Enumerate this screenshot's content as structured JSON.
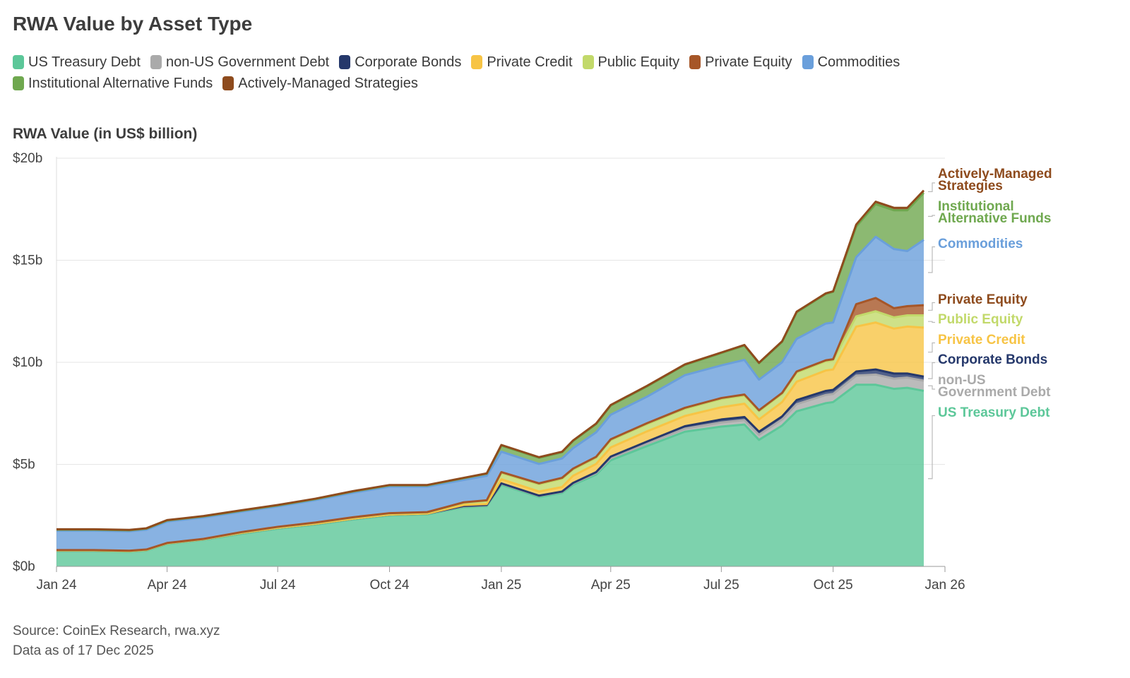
{
  "chart_data": {
    "type": "area",
    "stacked": true,
    "title": "RWA Value by Asset Type",
    "ylabel": "RWA Value (in US$ billion)",
    "xlabel": "",
    "ylim": [
      0,
      20
    ],
    "grid": true,
    "legend_position": "top",
    "y_ticks": [
      {
        "value": 0,
        "label": "$0b"
      },
      {
        "value": 5,
        "label": "$5b"
      },
      {
        "value": 10,
        "label": "$10b"
      },
      {
        "value": 15,
        "label": "$15b"
      },
      {
        "value": 20,
        "label": "$20b"
      }
    ],
    "x_ticks": [
      "Jan 24",
      "Apr 24",
      "Jul 24",
      "Oct 24",
      "Jan 25",
      "Apr 25",
      "Jul 25",
      "Oct 25",
      "Jan 26"
    ],
    "x": [
      "2024-01-01",
      "2024-02-01",
      "2024-03-01",
      "2024-03-15",
      "2024-04-01",
      "2024-05-01",
      "2024-06-01",
      "2024-07-01",
      "2024-08-01",
      "2024-09-01",
      "2024-10-01",
      "2024-11-01",
      "2024-12-01",
      "2024-12-20",
      "2025-01-01",
      "2025-02-01",
      "2025-02-20",
      "2025-03-01",
      "2025-03-20",
      "2025-04-01",
      "2025-05-01",
      "2025-06-01",
      "2025-07-01",
      "2025-07-20",
      "2025-08-01",
      "2025-08-20",
      "2025-09-01",
      "2025-09-25",
      "2025-10-01",
      "2025-10-20",
      "2025-11-05",
      "2025-11-20",
      "2025-12-01",
      "2025-12-17"
    ],
    "series": [
      {
        "name": "US Treasury Debt",
        "color": "#5cc799",
        "values": [
          0.75,
          0.75,
          0.72,
          0.78,
          1.1,
          1.3,
          1.6,
          1.85,
          2.05,
          2.3,
          2.5,
          2.55,
          2.9,
          2.95,
          4.0,
          3.4,
          3.6,
          4.0,
          4.5,
          5.2,
          5.9,
          6.6,
          6.85,
          6.95,
          6.2,
          6.9,
          7.6,
          8.0,
          8.05,
          8.9,
          8.9,
          8.7,
          8.75,
          8.6
        ]
      },
      {
        "name": "non-US Government Debt",
        "color": "#aaaaaa",
        "values": [
          0.02,
          0.02,
          0.02,
          0.02,
          0.02,
          0.02,
          0.03,
          0.03,
          0.03,
          0.03,
          0.03,
          0.03,
          0.04,
          0.04,
          0.05,
          0.05,
          0.05,
          0.06,
          0.07,
          0.1,
          0.12,
          0.15,
          0.2,
          0.22,
          0.25,
          0.3,
          0.35,
          0.4,
          0.4,
          0.45,
          0.5,
          0.5,
          0.5,
          0.5
        ]
      },
      {
        "name": "Corporate Bonds",
        "color": "#25386b",
        "values": [
          0.01,
          0.01,
          0.01,
          0.01,
          0.01,
          0.01,
          0.01,
          0.01,
          0.01,
          0.01,
          0.01,
          0.01,
          0.02,
          0.02,
          0.02,
          0.02,
          0.02,
          0.03,
          0.05,
          0.08,
          0.1,
          0.12,
          0.15,
          0.15,
          0.15,
          0.15,
          0.2,
          0.2,
          0.2,
          0.2,
          0.25,
          0.25,
          0.2,
          0.2
        ]
      },
      {
        "name": "Private Credit",
        "color": "#f7c445",
        "values": [
          0.0,
          0.0,
          0.0,
          0.0,
          0.0,
          0.0,
          0.0,
          0.0,
          0.0,
          0.0,
          0.0,
          0.0,
          0.05,
          0.05,
          0.2,
          0.2,
          0.22,
          0.35,
          0.4,
          0.45,
          0.5,
          0.5,
          0.6,
          0.65,
          0.6,
          0.7,
          0.9,
          1.0,
          1.0,
          2.2,
          2.3,
          2.2,
          2.3,
          2.4
        ]
      },
      {
        "name": "Public Equity",
        "color": "#c2d96a",
        "values": [
          0.0,
          0.0,
          0.0,
          0.0,
          0.0,
          0.0,
          0.02,
          0.03,
          0.04,
          0.05,
          0.05,
          0.05,
          0.1,
          0.15,
          0.3,
          0.35,
          0.4,
          0.3,
          0.3,
          0.35,
          0.35,
          0.35,
          0.4,
          0.4,
          0.4,
          0.4,
          0.45,
          0.45,
          0.45,
          0.5,
          0.55,
          0.55,
          0.55,
          0.6
        ]
      },
      {
        "name": "Private Equity",
        "color": "#a65628",
        "values": [
          0.02,
          0.02,
          0.02,
          0.02,
          0.02,
          0.02,
          0.02,
          0.02,
          0.02,
          0.02,
          0.02,
          0.02,
          0.03,
          0.03,
          0.05,
          0.05,
          0.05,
          0.05,
          0.05,
          0.05,
          0.05,
          0.05,
          0.05,
          0.05,
          0.05,
          0.05,
          0.05,
          0.05,
          0.05,
          0.6,
          0.65,
          0.45,
          0.45,
          0.5
        ]
      },
      {
        "name": "Commodities",
        "color": "#6a9fdb",
        "values": [
          0.95,
          0.95,
          0.95,
          0.97,
          1.05,
          1.05,
          1.0,
          1.0,
          1.1,
          1.2,
          1.3,
          1.25,
          1.1,
          1.2,
          1.0,
          0.95,
          0.95,
          1.0,
          1.2,
          1.2,
          1.3,
          1.6,
          1.6,
          1.7,
          1.5,
          1.5,
          1.6,
          1.8,
          1.8,
          2.3,
          3.0,
          2.9,
          2.7,
          3.2
        ]
      },
      {
        "name": "Institutional Alternative Funds",
        "color": "#6fa84f",
        "values": [
          0.05,
          0.05,
          0.05,
          0.05,
          0.05,
          0.05,
          0.05,
          0.05,
          0.05,
          0.06,
          0.06,
          0.06,
          0.08,
          0.1,
          0.3,
          0.3,
          0.3,
          0.35,
          0.4,
          0.45,
          0.5,
          0.5,
          0.6,
          0.7,
          0.8,
          1.0,
          1.3,
          1.45,
          1.5,
          1.5,
          1.6,
          1.9,
          2.0,
          2.3
        ]
      },
      {
        "name": "Actively-Managed Strategies",
        "color": "#8e4b1d",
        "values": [
          0.02,
          0.02,
          0.02,
          0.02,
          0.02,
          0.02,
          0.02,
          0.02,
          0.02,
          0.02,
          0.02,
          0.02,
          0.02,
          0.02,
          0.03,
          0.03,
          0.03,
          0.03,
          0.03,
          0.03,
          0.03,
          0.03,
          0.03,
          0.03,
          0.03,
          0.03,
          0.03,
          0.03,
          0.03,
          0.1,
          0.12,
          0.12,
          0.12,
          0.12
        ]
      }
    ],
    "end_labels": [
      {
        "series": "Actively-Managed Strategies",
        "lines": [
          "Actively-Managed",
          "Strategies"
        ],
        "color": "#8e4b1d"
      },
      {
        "series": "Institutional Alternative Funds",
        "lines": [
          "Institutional",
          "Alternative Funds"
        ],
        "color": "#6fa84f"
      },
      {
        "series": "Commodities",
        "lines": [
          "Commodities"
        ],
        "color": "#6a9fdb"
      },
      {
        "series": "Private Equity",
        "lines": [
          "Private Equity"
        ],
        "color": "#8e4b1d"
      },
      {
        "series": "Public Equity",
        "lines": [
          "Public Equity"
        ],
        "color": "#c2d96a"
      },
      {
        "series": "Private Credit",
        "lines": [
          "Private Credit"
        ],
        "color": "#f7c445"
      },
      {
        "series": "Corporate Bonds",
        "lines": [
          "Corporate Bonds"
        ],
        "color": "#25386b"
      },
      {
        "series": "non-US Government Debt",
        "lines": [
          "non-US",
          "Government Debt"
        ],
        "color": "#aaaaaa"
      },
      {
        "series": "US Treasury Debt",
        "lines": [
          "US Treasury Debt"
        ],
        "color": "#5cc799"
      }
    ],
    "source_lines": [
      "Source: CoinEx Research, rwa.xyz",
      "Data as of 17 Dec 2025"
    ]
  }
}
